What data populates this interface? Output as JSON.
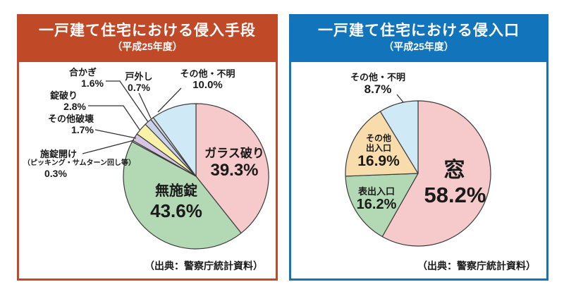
{
  "style": {
    "background": "#ffffff",
    "text": "#1a1a1a",
    "outline": "#3a3a3a",
    "leader": "#333333"
  },
  "panels": [
    {
      "accent": "#c04a28"
    },
    {
      "accent": "#1274bb"
    }
  ],
  "chart_data": [
    {
      "type": "pie",
      "title": "一戸建て住宅における侵入手段",
      "subtitle": "（平成25年度）",
      "source": "（出典：警察庁統計資料）",
      "unit": "%",
      "start_angle": "12-oclock",
      "direction": "clockwise",
      "slices": [
        {
          "key": "glass-breaking",
          "label": "ガラス破り",
          "value": 39.3,
          "pct": "39.3%",
          "color": "#f6caca"
        },
        {
          "key": "unlocked",
          "label": "無施錠",
          "value": 43.6,
          "pct": "43.6%",
          "color": "#b2d9b4"
        },
        {
          "key": "lock-picking",
          "label": "施錠開け",
          "note": "（ピッキング・サムターン回し等）",
          "value": 0.3,
          "pct": "0.3%",
          "color": "#f2eef2"
        },
        {
          "key": "other-destruction",
          "label": "その他破壊",
          "value": 1.7,
          "pct": "1.7%",
          "color": "#d6c6e3"
        },
        {
          "key": "lock-breaking",
          "label": "錠破り",
          "value": 2.8,
          "pct": "2.8%",
          "color": "#f8f3a9"
        },
        {
          "key": "duplicate-key",
          "label": "合かぎ",
          "value": 1.6,
          "pct": "1.6%",
          "color": "#c9d2ed"
        },
        {
          "key": "door-removal",
          "label": "戸外し",
          "value": 0.7,
          "pct": "0.7%",
          "color": "#d3d3d8"
        },
        {
          "key": "other-unknown",
          "label": "その他・不明",
          "value": 10.0,
          "pct": "10.0%",
          "color": "#d0e9f6"
        }
      ]
    },
    {
      "type": "pie",
      "title": "一戸建て住宅における侵入口",
      "subtitle": "（平成25年度）",
      "source": "（出典：警察庁統計資料）",
      "unit": "%",
      "start_angle": "12-oclock",
      "direction": "clockwise",
      "slices": [
        {
          "key": "window",
          "label": "窓",
          "value": 58.2,
          "pct": "58.2%",
          "color": "#f6caca"
        },
        {
          "key": "front-entrance",
          "label": "表出入口",
          "value": 16.2,
          "pct": "16.2%",
          "color": "#b2d9b4"
        },
        {
          "key": "other-entrance",
          "label": "その他出入口",
          "label_lines": [
            "その他",
            "出入口"
          ],
          "value": 16.9,
          "pct": "16.9%",
          "color": "#f8dcab"
        },
        {
          "key": "other-unknown",
          "label": "その他・不明",
          "value": 8.7,
          "pct": "8.7%",
          "color": "#d0e9f6"
        }
      ]
    }
  ]
}
